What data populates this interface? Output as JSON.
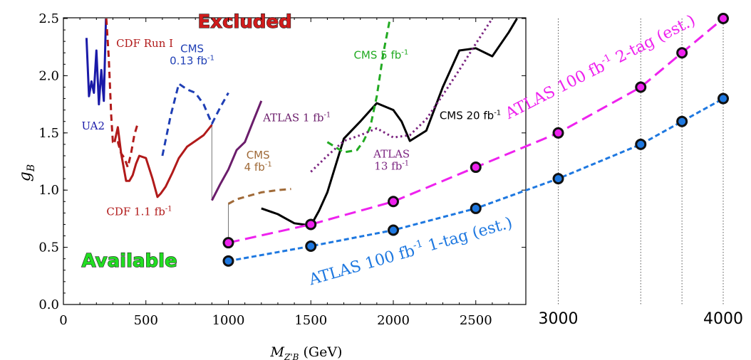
{
  "chart_data": {
    "type": "line",
    "xlabel": "M",
    "xlabel_sub": "Z'B",
    "xlabel_unit": " (GeV)",
    "ylabel": "g",
    "ylabel_sub": "B",
    "xlim": [
      0,
      4000
    ],
    "ylim": [
      0,
      2.5
    ],
    "x_ticks": [
      0,
      500,
      1000,
      1500,
      2000,
      2500,
      3000,
      4000
    ],
    "x_tick_labels": [
      "0",
      "500",
      "1000",
      "1500",
      "2000",
      "2500",
      "3000",
      "4000"
    ],
    "y_ticks": [
      0,
      0.5,
      1.0,
      1.5,
      2.0,
      2.5
    ],
    "y_tick_labels": [
      "0.0",
      "0.5",
      "1.0",
      "1.5",
      "2.0",
      "2.5"
    ],
    "region_labels": [
      {
        "text": "Excluded",
        "x": 1100,
        "y": 2.42,
        "color": "#d01c1c"
      },
      {
        "text": "Available",
        "x": 400,
        "y": 0.33,
        "color": "#22dd22"
      }
    ],
    "series": [
      {
        "name": "UA2",
        "color": "#1a1aa8",
        "dash": "solid",
        "x": [
          140,
          155,
          170,
          185,
          200,
          215,
          230,
          245,
          258
        ],
        "y": [
          2.33,
          1.82,
          1.95,
          1.85,
          2.22,
          1.75,
          2.05,
          1.78,
          2.5
        ],
        "label": "UA2",
        "label_x": 110,
        "label_y": 1.53,
        "label_anchor": "start"
      },
      {
        "name": "CDF Run I",
        "color": "#b11a1a",
        "dash": "dash",
        "x": [
          260,
          275,
          290,
          300,
          330,
          350,
          370,
          390,
          410,
          430,
          450
        ],
        "y": [
          2.5,
          2.15,
          1.65,
          1.42,
          1.42,
          1.32,
          1.28,
          1.2,
          1.32,
          1.48,
          1.58
        ],
        "label": "CDF Run I",
        "label_x": 320,
        "label_y": 2.25,
        "label_anchor": "start"
      },
      {
        "name": "CDF 1.1 fb-1",
        "color": "#b11a1a",
        "dash": "solid",
        "x": [
          310,
          330,
          350,
          380,
          400,
          420,
          440,
          460,
          500,
          540,
          570,
          590,
          620,
          660,
          700,
          750,
          800,
          850,
          900
        ],
        "y": [
          1.42,
          1.55,
          1.32,
          1.08,
          1.08,
          1.13,
          1.23,
          1.3,
          1.28,
          1.1,
          0.94,
          0.97,
          1.03,
          1.15,
          1.28,
          1.38,
          1.43,
          1.48,
          1.57
        ],
        "label": "CDF 1.1 fb",
        "sup": "-1",
        "label_x": 460,
        "label_y": 0.78,
        "label_anchor": "middle"
      },
      {
        "name": "CMS 0.13 fb-1",
        "color": "#1f3fb5",
        "dash": "dash",
        "x": [
          600,
          650,
          700,
          750,
          800,
          850,
          900,
          950,
          1000
        ],
        "y": [
          1.3,
          1.65,
          1.93,
          1.88,
          1.85,
          1.75,
          1.58,
          1.72,
          1.85
        ],
        "label": "CMS",
        "label2": "0.13 fb",
        "sup": "-1",
        "label_x": 780,
        "label_y": 2.1,
        "label_anchor": "middle"
      },
      {
        "name": "ATLAS 1 fb-1",
        "color": "#6b1d6b",
        "dash": "solid",
        "x": [
          900,
          950,
          1000,
          1050,
          1100,
          1150,
          1200
        ],
        "y": [
          0.91,
          1.05,
          1.18,
          1.35,
          1.42,
          1.6,
          1.78
        ],
        "label": "ATLAS 1 fb",
        "sup": "-1",
        "label_x": 1210,
        "label_y": 1.6,
        "label_anchor": "start"
      },
      {
        "name": "CMS 4 fb-1",
        "color": "#a06a38",
        "dash": "dash",
        "x": [
          1000,
          1050,
          1100,
          1150,
          1200,
          1250,
          1300,
          1380
        ],
        "y": [
          0.88,
          0.92,
          0.94,
          0.96,
          0.98,
          0.99,
          1.0,
          1.01
        ],
        "label": "CMS",
        "label2": "4 fb",
        "sup": "-1",
        "label_x": 1180,
        "label_y": 1.17,
        "label_anchor": "middle"
      },
      {
        "name": "CMS 20 fb-1",
        "color": "#000000",
        "dash": "solid",
        "x": [
          1200,
          1300,
          1350,
          1400,
          1500,
          1550,
          1600,
          1700,
          1800,
          1900,
          2000,
          2050,
          2100,
          2200,
          2300,
          2400,
          2500,
          2600,
          2700,
          2750
        ],
        "y": [
          0.84,
          0.79,
          0.75,
          0.71,
          0.69,
          0.82,
          0.98,
          1.45,
          1.6,
          1.76,
          1.7,
          1.6,
          1.43,
          1.52,
          1.9,
          2.22,
          2.24,
          2.17,
          2.38,
          2.5
        ],
        "label": "CMS 20 fb",
        "sup": "-1",
        "label_x": 2280,
        "label_y": 1.62,
        "label_anchor": "start"
      },
      {
        "name": "CMS 5 fb-1",
        "color": "#22aa22",
        "dash": "dash",
        "x": [
          1600,
          1700,
          1780,
          1820,
          1860,
          1900,
          1940,
          1980
        ],
        "y": [
          1.42,
          1.33,
          1.35,
          1.43,
          1.55,
          1.82,
          2.2,
          2.5
        ],
        "label": "CMS 5 fb",
        "sup": "-1",
        "label_x": 1760,
        "label_y": 2.15,
        "label_anchor": "start"
      },
      {
        "name": "ATLAS 13 fb-1",
        "color": "#7b2480",
        "dash": "dot",
        "x": [
          1500,
          1600,
          1700,
          1800,
          1900,
          2000,
          2100,
          2200,
          2300,
          2400,
          2500,
          2600
        ],
        "y": [
          1.16,
          1.3,
          1.43,
          1.48,
          1.54,
          1.46,
          1.48,
          1.62,
          1.83,
          2.05,
          2.28,
          2.5
        ],
        "label": "ATLAS",
        "label2": "13 fb",
        "sup": "-1",
        "label_x": 1990,
        "label_y": 1.18,
        "label_anchor": "middle"
      }
    ],
    "projections": [
      {
        "name": "ATLAS 100 fb-1 2-tag (est.)",
        "color": "#ee22ee",
        "dash": "longdash",
        "x": [
          1000,
          1500,
          2000,
          2500,
          3000,
          3500,
          3750,
          4000
        ],
        "y": [
          0.54,
          0.7,
          0.9,
          1.2,
          1.5,
          1.9,
          2.2,
          2.5
        ],
        "label": "ATLAS 100 fb",
        "sup": "-1",
        "tail": " 2-tag (est.)",
        "label_x": 2700,
        "label_y": 1.62,
        "label_rotate": -27
      },
      {
        "name": "ATLAS 100 fb-1 1-tag (est.)",
        "color": "#1e78e0",
        "dash": "shortdash",
        "x": [
          1000,
          1500,
          2000,
          2500,
          3000,
          3500,
          3750,
          4000
        ],
        "y": [
          0.38,
          0.51,
          0.65,
          0.84,
          1.1,
          1.4,
          1.6,
          1.8
        ],
        "label": "ATLAS 100 fb",
        "sup": "-1",
        "tail": " 1-tag (est.)",
        "label_x": 1500,
        "label_y": 0.17,
        "label_rotate": -16
      }
    ],
    "vertical_guides": [
      900,
      1000
    ],
    "outer_dotted_lines": [
      3000,
      3500,
      3750,
      4000
    ]
  }
}
